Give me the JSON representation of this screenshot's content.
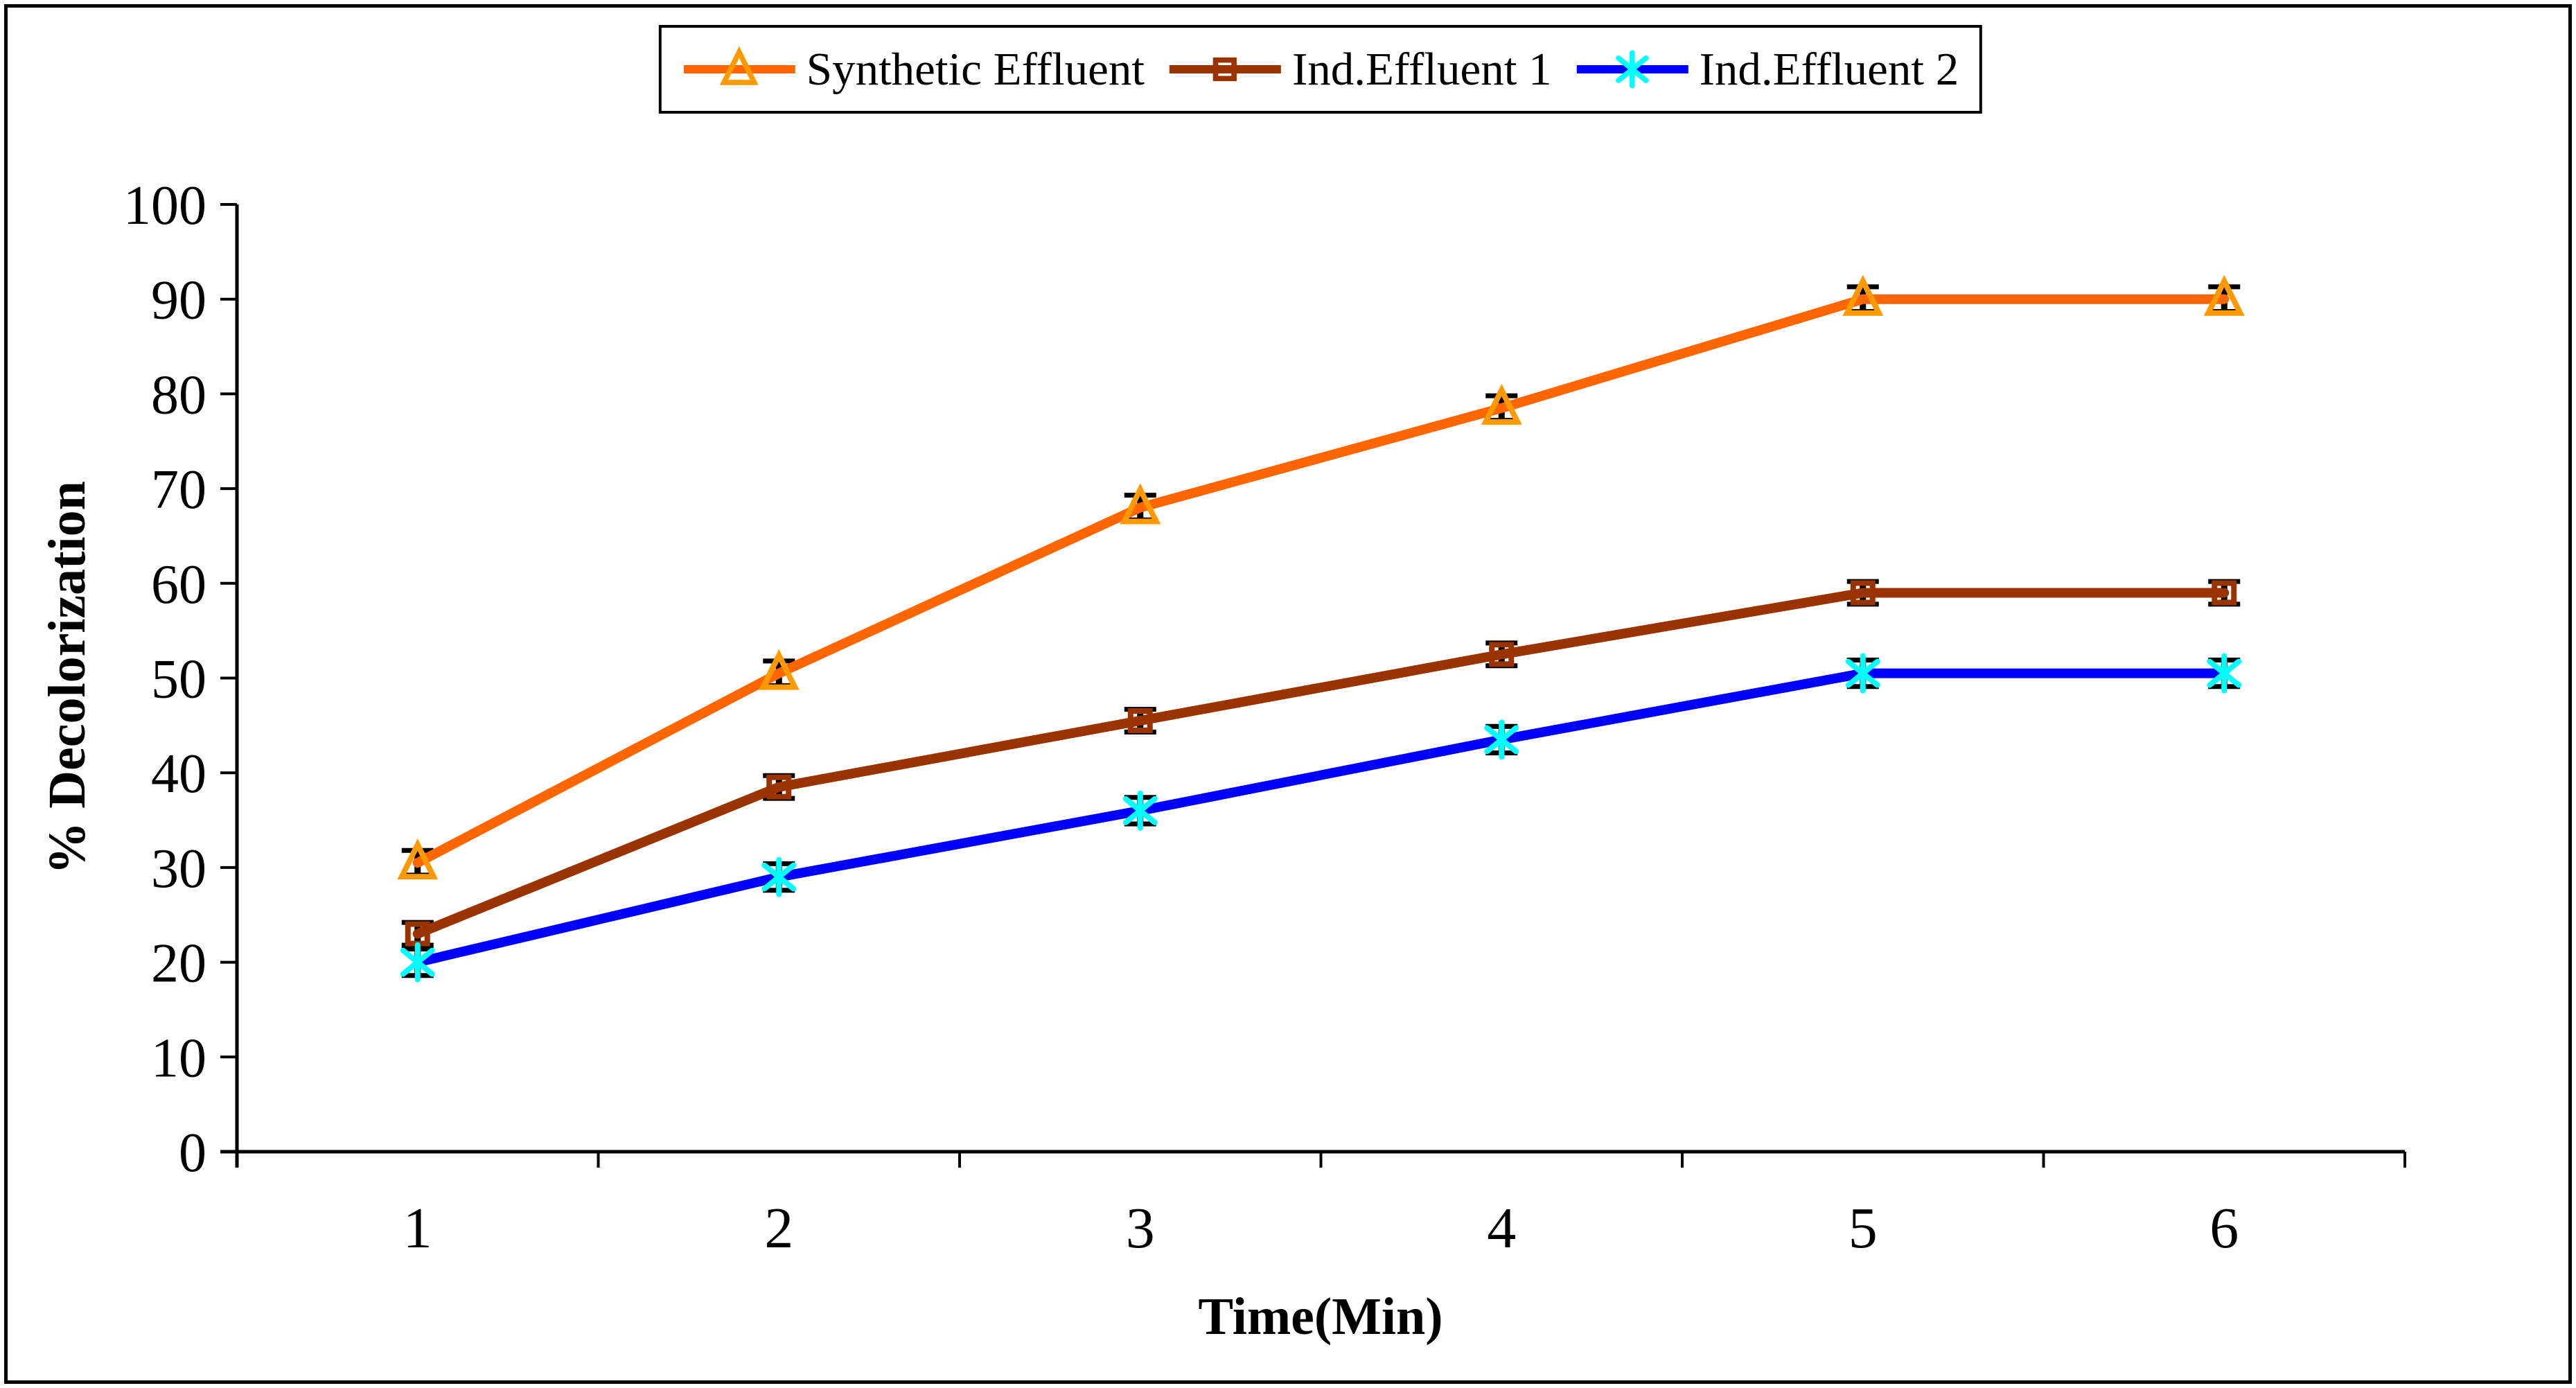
{
  "chart_data": {
    "type": "line",
    "title": "",
    "xlabel": "Time(Min)",
    "ylabel": "% Decolorization",
    "categories": [
      "1",
      "2",
      "3",
      "4",
      "5",
      "6"
    ],
    "yticks": [
      0,
      10,
      20,
      30,
      40,
      50,
      60,
      70,
      80,
      90,
      100
    ],
    "ylim": [
      0,
      100
    ],
    "grid": false,
    "legend_position": "top-center",
    "axis_color": "#000000",
    "error_bar_color": "#000000",
    "series": [
      {
        "name": "Synthetic Effluent",
        "line_color": "#FF6600",
        "marker": "triangle",
        "marker_color": "#FF9900",
        "values": [
          30.5,
          50.5,
          68,
          78.5,
          90,
          90
        ],
        "error": 1.3
      },
      {
        "name": "Ind.Effluent 1",
        "line_color": "#993300",
        "marker": "square",
        "marker_color": "#993300",
        "values": [
          23,
          38.5,
          45.5,
          52.5,
          59,
          59
        ],
        "error": 1.2
      },
      {
        "name": "Ind.Effluent 2",
        "line_color": "#0000FF",
        "marker": "star",
        "marker_color": "#00FFFF",
        "values": [
          20,
          29,
          36,
          43.5,
          50.5,
          50.5
        ],
        "error": 1.4
      }
    ]
  }
}
